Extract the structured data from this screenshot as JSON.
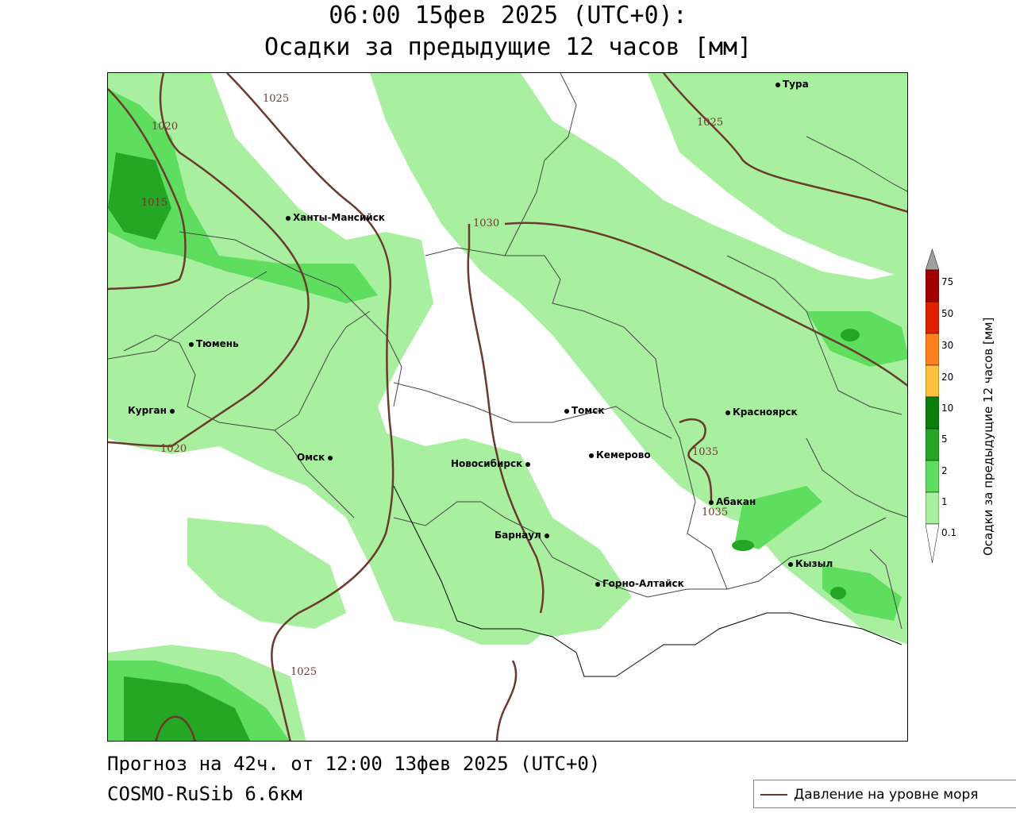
{
  "header": {
    "line1": "06:00 15фев 2025 (UTC+0):",
    "line2": "Осадки за предыдущие 12 часов [мм]"
  },
  "cities": [
    {
      "name": "Тура"
    },
    {
      "name": "Ханты-Мансийск"
    },
    {
      "name": "Тюмень"
    },
    {
      "name": "Курган"
    },
    {
      "name": "Омск"
    },
    {
      "name": "Новосибирск"
    },
    {
      "name": "Томск"
    },
    {
      "name": "Кемерово"
    },
    {
      "name": "Красноярск"
    },
    {
      "name": "Абакан"
    },
    {
      "name": "Барнаул"
    },
    {
      "name": "Горно-Алтайск"
    },
    {
      "name": "Кызыл"
    }
  ],
  "isobars": [
    "1025",
    "1020",
    "1015",
    "1030",
    "1025",
    "1035",
    "1035",
    "1020",
    "1025"
  ],
  "colorbar": {
    "title": "Осадки за предыдущие 12 часов [мм]",
    "levels": [
      "75",
      "50",
      "30",
      "20",
      "10",
      "5",
      "2",
      "1",
      "0.1"
    ],
    "colors": [
      "#a0a0a0",
      "#a50000",
      "#e02000",
      "#ff7f1e",
      "#ffc040",
      "#0a7f0a",
      "#25a625",
      "#5edd5e",
      "#a8f0a0",
      "#ffffff"
    ]
  },
  "footer": {
    "forecast": "Прогноз на 42ч. от 12:00 13фев 2025 (UTC+0)",
    "model": "COSMO-RuSib 6.6км"
  },
  "legend": {
    "label": "Давление на уровне моря"
  }
}
